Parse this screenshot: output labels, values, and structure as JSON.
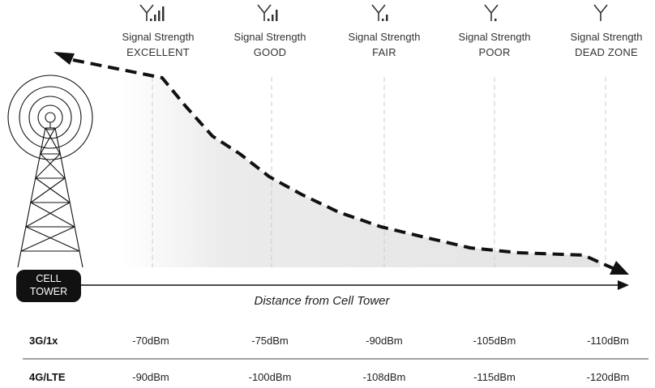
{
  "levels": [
    {
      "title": "Signal Strength",
      "name": "EXCELLENT",
      "bars": 3
    },
    {
      "title": "Signal Strength",
      "name": "GOOD",
      "bars": 2
    },
    {
      "title": "Signal Strength",
      "name": "FAIR",
      "bars": 1
    },
    {
      "title": "Signal Strength",
      "name": "POOR",
      "bars": 0
    },
    {
      "title": "Signal Strength",
      "name": "DEAD ZONE",
      "bars": -1
    }
  ],
  "tower": {
    "line1": "CELL",
    "line2": "TOWER"
  },
  "axis": {
    "label": "Distance from Cell Tower"
  },
  "table": {
    "rows": [
      {
        "label": "3G/1x",
        "values": [
          "-70dBm",
          "-75dBm",
          "-90dBm",
          "-105dBm",
          "-110dBm"
        ]
      },
      {
        "label": "4G/LTE",
        "values": [
          "-90dBm",
          "-100dBm",
          "-108dBm",
          "-115dBm",
          "-120dBm"
        ]
      }
    ]
  },
  "colors": {
    "curve": "#111111",
    "fill": "#e6e6e6",
    "guide": "#cccccc",
    "badge": "#111111"
  }
}
